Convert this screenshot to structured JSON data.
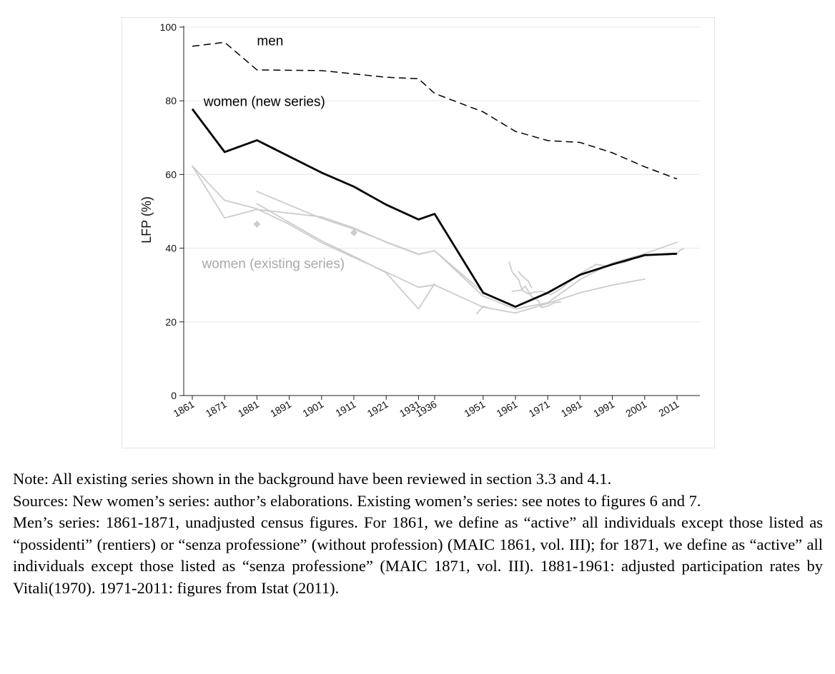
{
  "chart_data": {
    "type": "line",
    "title": "",
    "xlabel": "",
    "ylabel": "LFP (%)",
    "xlim": [
      1858,
      2016
    ],
    "ylim": [
      0,
      100
    ],
    "grid": true,
    "x_ticks": [
      1861,
      1871,
      1881,
      1891,
      1901,
      1911,
      1921,
      1931,
      1936,
      1951,
      1961,
      1971,
      1981,
      1991,
      2001,
      2011
    ],
    "y_ticks": [
      0,
      20,
      40,
      60,
      80,
      100
    ],
    "series": [
      {
        "name": "men",
        "style": "dashed",
        "color": "#000000",
        "points": [
          [
            1861,
            94.8
          ],
          [
            1871,
            95.9
          ],
          [
            1881,
            88.4
          ],
          [
            1891,
            88.3
          ],
          [
            1901,
            88.2
          ],
          [
            1911,
            87.3
          ],
          [
            1921,
            86.4
          ],
          [
            1931,
            86.0
          ],
          [
            1936,
            82.0
          ],
          [
            1951,
            77.0
          ],
          [
            1961,
            71.7
          ],
          [
            1971,
            69.2
          ],
          [
            1981,
            68.7
          ],
          [
            1991,
            65.9
          ],
          [
            2001,
            62.1
          ],
          [
            2011,
            58.8
          ]
        ]
      },
      {
        "name": "women (new series)",
        "style": "solid-bold",
        "color": "#000000",
        "points": [
          [
            1861,
            77.8
          ],
          [
            1871,
            66.1
          ],
          [
            1881,
            69.3
          ],
          [
            1891,
            64.9
          ],
          [
            1901,
            60.5
          ],
          [
            1911,
            56.7
          ],
          [
            1921,
            51.8
          ],
          [
            1931,
            47.8
          ],
          [
            1936,
            49.3
          ],
          [
            1951,
            27.9
          ],
          [
            1961,
            24.1
          ],
          [
            1971,
            27.9
          ],
          [
            1981,
            32.8
          ],
          [
            1991,
            35.6
          ],
          [
            2001,
            38.1
          ],
          [
            2011,
            38.5
          ]
        ]
      },
      {
        "name": "women (existing series)",
        "style": "background",
        "color": "#cccccc",
        "lines": [
          [
            [
              1861,
              62.3
            ],
            [
              1871,
              48.2
            ],
            [
              1881,
              50.5
            ],
            [
              1901,
              48.5
            ],
            [
              1911,
              45.5
            ],
            [
              1921,
              41.6
            ],
            [
              1931,
              38.3
            ],
            [
              1936,
              39.3
            ],
            [
              1951,
              27.0
            ],
            [
              1961,
              23.5
            ],
            [
              1971,
              25.2
            ],
            [
              1981,
              31.5
            ],
            [
              1991,
              36.0
            ],
            [
              2001,
              38.5
            ],
            [
              2011,
              41.6
            ]
          ],
          [
            [
              1861,
              62.3
            ],
            [
              1871,
              53.0
            ],
            [
              1881,
              50.7
            ],
            [
              1891,
              46.5
            ],
            [
              1901,
              41.5
            ],
            [
              1911,
              37.5
            ],
            [
              1921,
              33.5
            ],
            [
              1931,
              29.4
            ],
            [
              1936,
              30.0
            ],
            [
              1951,
              24.0
            ],
            [
              1961,
              22.4
            ],
            [
              1971,
              25.0
            ],
            [
              1981,
              27.9
            ],
            [
              1991,
              30.0
            ],
            [
              2001,
              31.6
            ]
          ],
          [
            [
              1881,
              55.4
            ],
            [
              1891,
              51.7
            ],
            [
              1901,
              48.1
            ],
            [
              1911,
              45.2
            ],
            [
              1921,
              41.7
            ],
            [
              1931,
              38.4
            ],
            [
              1936,
              39.3
            ],
            [
              1951,
              28.0
            ]
          ],
          [
            [
              1881,
              52.1
            ],
            [
              1891,
              47.0
            ],
            [
              1901,
              42.0
            ],
            [
              1911,
              37.8
            ],
            [
              1921,
              33.3
            ],
            [
              1931,
              23.5
            ],
            [
              1936,
              30.4
            ]
          ],
          [
            [
              1949,
              22.2
            ],
            [
              1951,
              24.2
            ],
            [
              1953,
              23.7
            ]
          ],
          [
            [
              1959,
              36.3
            ],
            [
              1960,
              33.5
            ],
            [
              1962,
              31.5
            ],
            [
              1963,
              28.8
            ],
            [
              1964,
              29.7
            ],
            [
              1966,
              26.8
            ],
            [
              1968,
              25.9
            ],
            [
              1969,
              23.9
            ],
            [
              1971,
              24.3
            ],
            [
              1973,
              25.2
            ],
            [
              1975,
              25.4
            ]
          ],
          [
            [
              1960,
              28.3
            ],
            [
              1963,
              28.6
            ],
            [
              1965,
              27.6
            ],
            [
              1967,
              28.1
            ],
            [
              1969,
              28.3
            ],
            [
              1972,
              27.4
            ],
            [
              1975,
              29.0
            ],
            [
              1977,
              30.5
            ],
            [
              1980,
              32.4
            ],
            [
              1983,
              34.1
            ],
            [
              1986,
              35.6
            ],
            [
              1989,
              35.2
            ],
            [
              1992,
              35.9
            ],
            [
              1995,
              36.2
            ],
            [
              1998,
              37.4
            ],
            [
              2001,
              38.0
            ],
            [
              2004,
              38.3
            ],
            [
              2008,
              38.2
            ],
            [
              2011,
              38.5
            ],
            [
              2012,
              39.5
            ],
            [
              2013,
              39.8
            ]
          ],
          [
            [
              1962,
              33.6
            ],
            [
              1963,
              32.5
            ],
            [
              1965,
              31.0
            ],
            [
              1966,
              29.2
            ]
          ]
        ],
        "markers": [
          [
            1881,
            46.5
          ],
          [
            1911,
            44.2
          ]
        ]
      }
    ],
    "annotations": [
      {
        "text": "men",
        "x": 1881,
        "y": 95.1
      },
      {
        "text": "women (new series)",
        "x": 1864.5,
        "y": 78.6
      },
      {
        "text": "women (existing series)",
        "x": 1864,
        "y": 34.6
      }
    ]
  },
  "notes": [
    "Note: All existing series shown in the background have been reviewed in section 3.3 and 4.1.",
    "Sources: New women’s series: author’s elaborations. Existing women’s series: see notes to figures 6 and 7.",
    "Men’s series: 1861-1871, unadjusted census figures. For 1861, we define as “active” all individuals except those listed as “possidenti” (rentiers) or “senza professione” (without profession) (MAIC 1861, vol. III); for 1871, we define as “active” all individuals except those listed as “senza professione” (MAIC 1871, vol. III). 1881-1961: adjusted participation rates by Vitali(1970). 1971-2011: figures from Istat (2011)."
  ]
}
